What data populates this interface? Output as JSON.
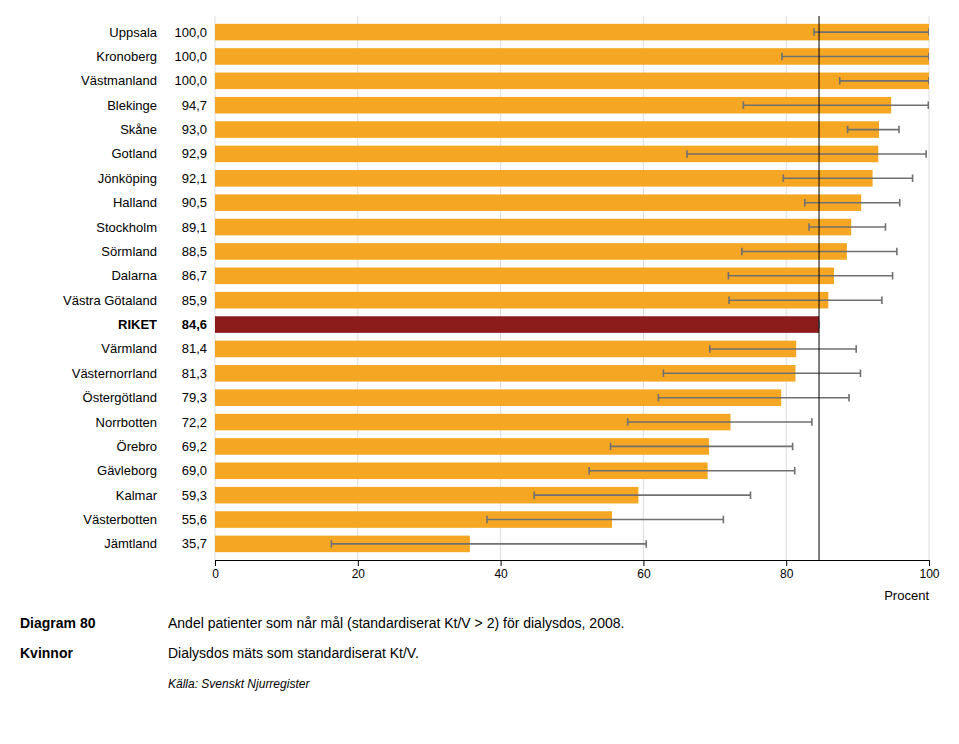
{
  "chart_data": {
    "type": "bar",
    "orientation": "horizontal",
    "categories": [
      "Uppsala",
      "Kronoberg",
      "Västmanland",
      "Blekinge",
      "Skåne",
      "Gotland",
      "Jönköping",
      "Halland",
      "Stockholm",
      "Sörmland",
      "Dalarna",
      "Västra Götaland",
      "RIKET",
      "Värmland",
      "Västernorrland",
      "Östergötland",
      "Norrbotten",
      "Örebro",
      "Gävleborg",
      "Kalmar",
      "Västerbotten",
      "Jämtland"
    ],
    "values": [
      100.0,
      100.0,
      100.0,
      94.7,
      93.0,
      92.9,
      92.1,
      90.5,
      89.1,
      88.5,
      86.7,
      85.9,
      84.6,
      81.4,
      81.3,
      79.3,
      72.2,
      69.2,
      69.0,
      59.3,
      55.6,
      35.7
    ],
    "value_labels": [
      "100,0",
      "100,0",
      "100,0",
      "94,7",
      "93,0",
      "92,9",
      "92,1",
      "90,5",
      "89,1",
      "88,5",
      "86,7",
      "85,9",
      "84,6",
      "81,4",
      "81,3",
      "79,3",
      "72,2",
      "69,2",
      "69,0",
      "59,3",
      "55,6",
      "35,7"
    ],
    "data_labels": true,
    "ci_low": [
      83.9,
      79.4,
      87.5,
      74.0,
      88.6,
      66.1,
      79.6,
      82.6,
      83.2,
      73.8,
      71.9,
      72.0,
      84.6,
      69.3,
      62.8,
      62.1,
      57.8,
      55.4,
      52.4,
      44.7,
      38.1,
      16.3
    ],
    "ci_high": [
      100.0,
      100.0,
      100.0,
      99.9,
      95.8,
      99.6,
      97.7,
      95.9,
      93.9,
      95.5,
      94.9,
      93.4,
      84.6,
      89.8,
      90.4,
      88.8,
      83.6,
      80.9,
      81.2,
      75.0,
      71.2,
      60.4
    ],
    "colors": [
      "#F5A623",
      "#F5A623",
      "#F5A623",
      "#F5A623",
      "#F5A623",
      "#F5A623",
      "#F5A623",
      "#F5A623",
      "#F5A623",
      "#F5A623",
      "#F5A623",
      "#F5A623",
      "#8B1A1A",
      "#F5A623",
      "#F5A623",
      "#F5A623",
      "#F5A623",
      "#F5A623",
      "#F5A623",
      "#F5A623",
      "#F5A623",
      "#F5A623"
    ],
    "reference_line": 84.6,
    "xlabel": "Procent",
    "xlim": [
      0,
      100
    ],
    "xticks": [
      0,
      20,
      40,
      60,
      80,
      100
    ],
    "grid": true,
    "annotations": [
      "Diagram 80",
      "Kvinnor",
      "Andel patienter som når mål (standardiserat Kt/V > 2) för dialysdos, 2008.",
      "Dialysdos mäts som standardiserat Kt/V.",
      "Källa: Svenskt Njurregister"
    ]
  }
}
